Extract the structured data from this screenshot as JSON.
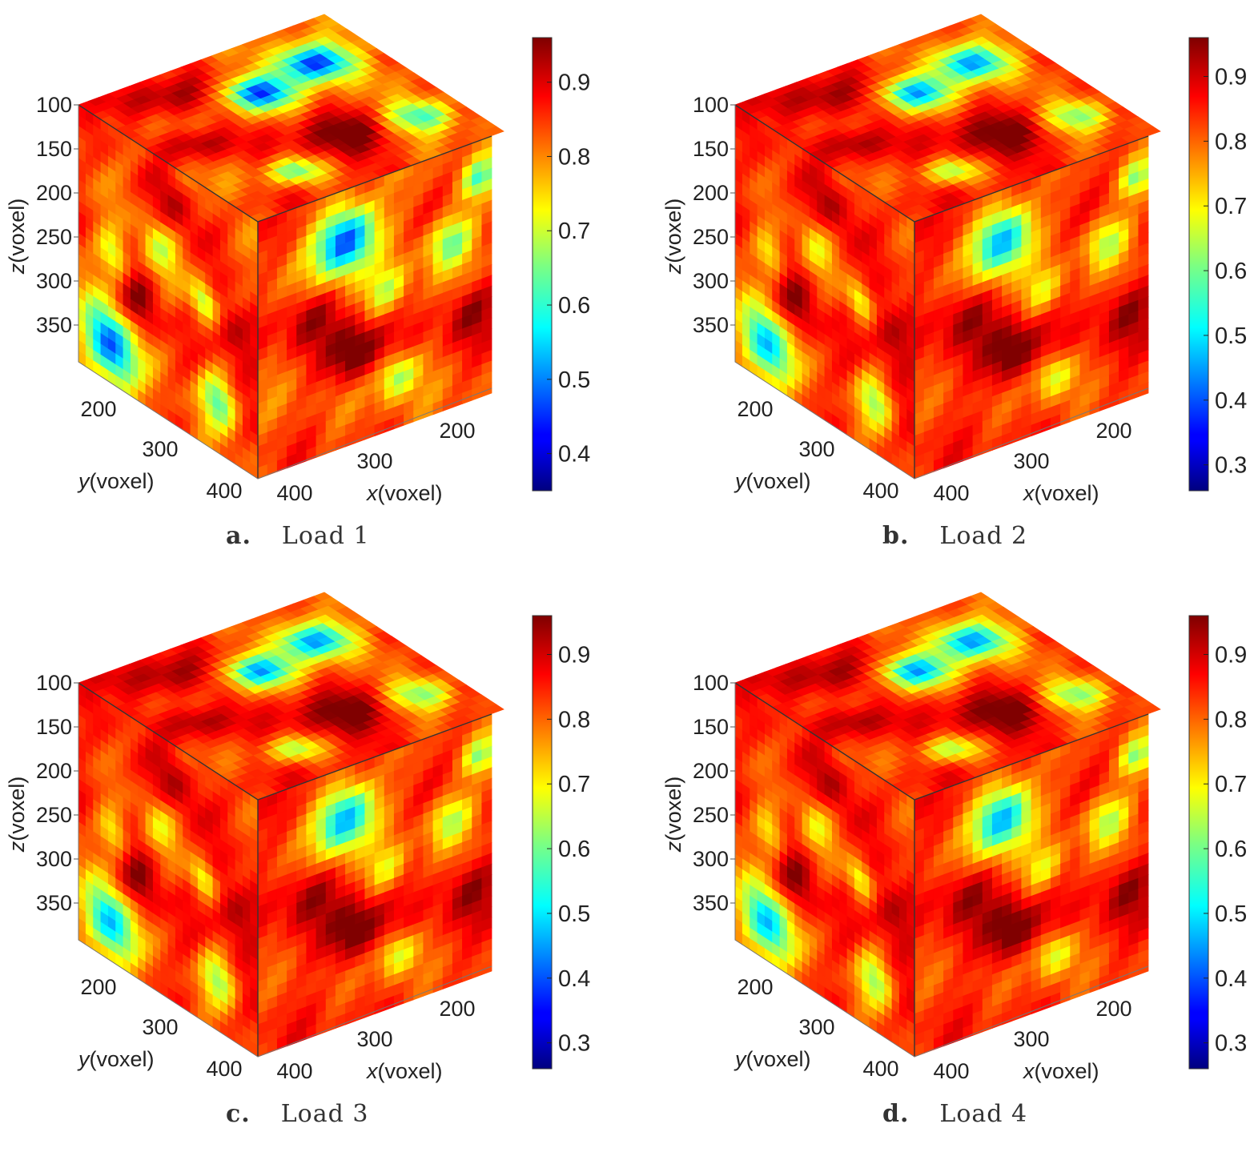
{
  "chart_data": [
    {
      "type": "heatmap",
      "panel_letter": "a.",
      "caption": "Load 1",
      "xlabel": "x(voxel)",
      "ylabel": "y(voxel)",
      "zlabel": "z(voxel)",
      "z_ticks": [
        "100",
        "150",
        "200",
        "250",
        "300",
        "350"
      ],
      "y_ticks": [
        "200",
        "300",
        "400"
      ],
      "x_ticks": [
        "400",
        "300",
        "200"
      ],
      "colorbar": {
        "colormap": "jet",
        "range": [
          0.35,
          0.96
        ],
        "ticks": [
          0.4,
          0.5,
          0.6,
          0.7,
          0.8,
          0.9
        ]
      }
    },
    {
      "type": "heatmap",
      "panel_letter": "b.",
      "caption": "Load 2",
      "xlabel": "x(voxel)",
      "ylabel": "y(voxel)",
      "zlabel": "z(voxel)",
      "z_ticks": [
        "100",
        "150",
        "200",
        "250",
        "300",
        "350"
      ],
      "y_ticks": [
        "200",
        "300",
        "400"
      ],
      "x_ticks": [
        "400",
        "300",
        "200"
      ],
      "colorbar": {
        "colormap": "jet",
        "range": [
          0.26,
          0.96
        ],
        "ticks": [
          0.3,
          0.4,
          0.5,
          0.6,
          0.7,
          0.8,
          0.9
        ]
      }
    },
    {
      "type": "heatmap",
      "panel_letter": "c.",
      "caption": "Load 3",
      "xlabel": "x(voxel)",
      "ylabel": "y(voxel)",
      "zlabel": "z(voxel)",
      "z_ticks": [
        "100",
        "150",
        "200",
        "250",
        "300",
        "350"
      ],
      "y_ticks": [
        "200",
        "300",
        "400"
      ],
      "x_ticks": [
        "400",
        "300",
        "200"
      ],
      "colorbar": {
        "colormap": "jet",
        "range": [
          0.26,
          0.96
        ],
        "ticks": [
          0.3,
          0.4,
          0.5,
          0.6,
          0.7,
          0.8,
          0.9
        ]
      }
    },
    {
      "type": "heatmap",
      "panel_letter": "d.",
      "caption": "Load 4",
      "xlabel": "x(voxel)",
      "ylabel": "y(voxel)",
      "zlabel": "z(voxel)",
      "z_ticks": [
        "100",
        "150",
        "200",
        "250",
        "300",
        "350"
      ],
      "y_ticks": [
        "200",
        "300",
        "400"
      ],
      "x_ticks": [
        "400",
        "300",
        "200"
      ],
      "colorbar": {
        "colormap": "jet",
        "range": [
          0.26,
          0.96
        ],
        "ticks": [
          0.3,
          0.4,
          0.5,
          0.6,
          0.7,
          0.8,
          0.9
        ]
      }
    }
  ]
}
